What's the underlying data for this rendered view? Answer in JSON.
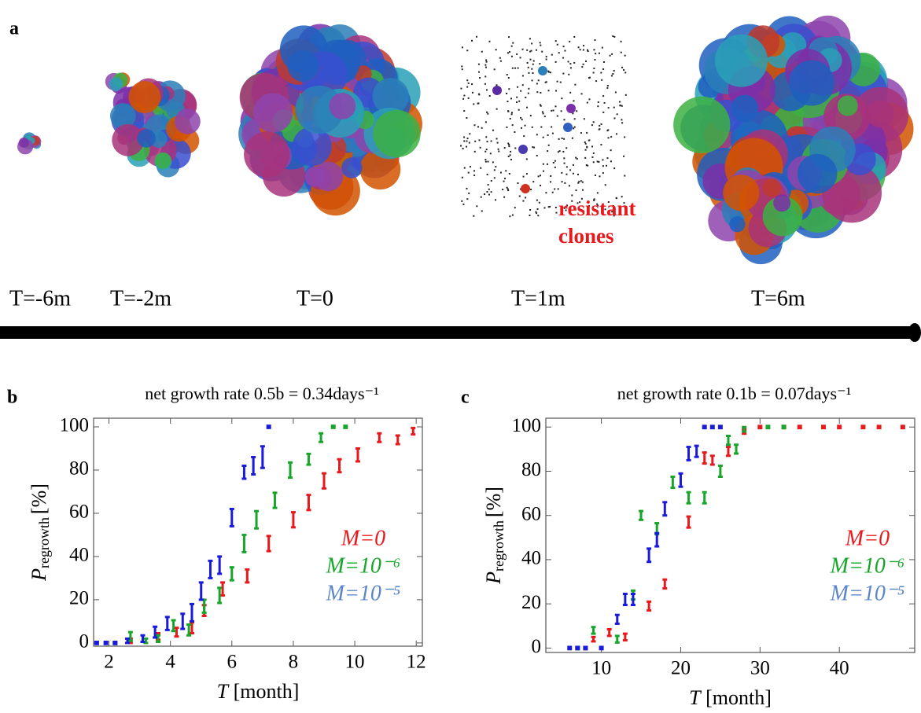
{
  "panel_a": {
    "panel": "a",
    "times": [
      "T=-6m",
      "T=-2m",
      "T=0",
      "T=1m",
      "T=6m"
    ],
    "annotation": [
      "resistant",
      "clones"
    ]
  },
  "chart_data": [
    {
      "type": "errorbar",
      "panel": "b",
      "title": "net growth rate 0.5b = 0.34days⁻¹",
      "x_label": {
        "symbol": "T",
        "unit": "[month]"
      },
      "y_label": {
        "symbol": "P",
        "subscript": "regrowth",
        "unit": "[%]"
      },
      "xlim": [
        1.5,
        12.2
      ],
      "xticks": [
        2,
        4,
        6,
        8,
        10,
        12
      ],
      "ylim": [
        -1.5,
        104
      ],
      "yticks": [
        0,
        20,
        40,
        60,
        80,
        100
      ],
      "series": [
        {
          "name": "M=0",
          "color": "#e8191c",
          "x": [
            2.7,
            3.6,
            4.2,
            4.7,
            5.1,
            5.7,
            6.5,
            7.2,
            8.0,
            8.5,
            9.0,
            9.5,
            10.1,
            10.8,
            11.4,
            11.9
          ],
          "values": [
            1,
            3,
            5,
            7,
            15,
            25,
            31,
            46,
            57,
            65,
            75,
            82,
            87,
            95,
            94,
            98
          ],
          "errors": [
            1,
            1.5,
            2,
            2.5,
            2.5,
            3,
            3,
            3.5,
            3.5,
            3.5,
            3.5,
            3,
            3,
            2,
            2,
            1.5
          ]
        },
        {
          "name": "M=10⁻⁶",
          "color": "#17a62b",
          "x": [
            2.2,
            2.7,
            3.2,
            3.6,
            4.1,
            4.6,
            5.1,
            5.6,
            6.0,
            6.4,
            6.8,
            7.4,
            7.9,
            8.5,
            8.9,
            9.3,
            9.7
          ],
          "values": [
            0,
            3,
            1,
            2,
            8,
            6,
            17,
            22,
            32,
            46,
            57,
            66,
            80,
            85,
            95,
            100,
            100
          ],
          "errors": [
            0.5,
            2,
            1,
            1.5,
            2.5,
            2.5,
            3,
            3.5,
            3,
            4,
            4,
            3.5,
            3.5,
            2.5,
            2,
            0.5,
            0.5
          ]
        },
        {
          "name": "M=10⁻⁵",
          "color": "#1a1adb",
          "legend_color": "#5b86c8",
          "x": [
            1.6,
            1.9,
            2.2,
            2.6,
            3.1,
            3.5,
            3.9,
            4.4,
            4.7,
            5.0,
            5.3,
            5.6,
            6.0,
            6.4,
            6.7,
            7.0,
            7.2
          ],
          "values": [
            0,
            0,
            0,
            1,
            2,
            5,
            9,
            10,
            14,
            24,
            34,
            36,
            58,
            79,
            82,
            86,
            100
          ],
          "errors": [
            0.5,
            0.5,
            0.5,
            1,
            1.5,
            2.5,
            3,
            3.5,
            4,
            4,
            4,
            4,
            4,
            3,
            4,
            5,
            0.5
          ]
        }
      ]
    },
    {
      "type": "errorbar",
      "panel": "c",
      "title": "net growth rate 0.1b = 0.07days⁻¹",
      "x_label": {
        "symbol": "T",
        "unit": "[month]"
      },
      "y_label": {
        "symbol": "P",
        "subscript": "regrowth",
        "unit": "[%]"
      },
      "xlim": [
        3,
        49.5
      ],
      "xticks": [
        10,
        20,
        30,
        40
      ],
      "ylim": [
        -2,
        104
      ],
      "yticks": [
        0,
        20,
        40,
        60,
        80,
        100
      ],
      "series": [
        {
          "name": "M=0",
          "color": "#e8191c",
          "x": [
            8,
            9,
            11,
            13,
            16,
            18,
            21,
            23,
            24,
            26,
            28,
            30,
            33,
            35,
            38,
            40,
            43,
            45,
            48
          ],
          "values": [
            0,
            4,
            7,
            5,
            19,
            29,
            57,
            86,
            85,
            89,
            98,
            100,
            100,
            100,
            100,
            100,
            100,
            100,
            100
          ],
          "errors": [
            0.5,
            1,
            1.5,
            1.5,
            2,
            2,
            2.5,
            2.5,
            2,
            2,
            1,
            0.5,
            0.5,
            0.5,
            0.5,
            0.5,
            0.5,
            0.5,
            0.5
          ]
        },
        {
          "name": "M=10⁻⁶",
          "color": "#17a62b",
          "x": [
            7,
            9,
            12,
            14,
            15,
            17,
            19,
            21,
            23,
            25,
            26,
            27,
            28,
            31,
            33
          ],
          "values": [
            0,
            8,
            4,
            24,
            60,
            54,
            75,
            68,
            68,
            80,
            94,
            90,
            99,
            100,
            100
          ],
          "errors": [
            0.5,
            1.5,
            1.5,
            2,
            2,
            2.5,
            2.5,
            2.5,
            2.5,
            2.5,
            2,
            2,
            1,
            0.5,
            0.5
          ]
        },
        {
          "name": "M=10⁻⁵",
          "color": "#1a1adb",
          "legend_color": "#5b86c8",
          "x": [
            6,
            7,
            8,
            10,
            12,
            13,
            14,
            16,
            17,
            18,
            20,
            21,
            22,
            23,
            24,
            25
          ],
          "values": [
            0,
            0,
            0,
            0,
            13,
            22,
            22,
            42,
            49,
            63,
            76,
            88,
            89,
            100,
            100,
            100
          ],
          "errors": [
            0.5,
            0.5,
            0.5,
            0.5,
            2,
            2.5,
            2.5,
            3,
            3,
            3,
            3,
            3,
            2.5,
            0.5,
            0.5,
            0.5
          ]
        }
      ]
    }
  ]
}
